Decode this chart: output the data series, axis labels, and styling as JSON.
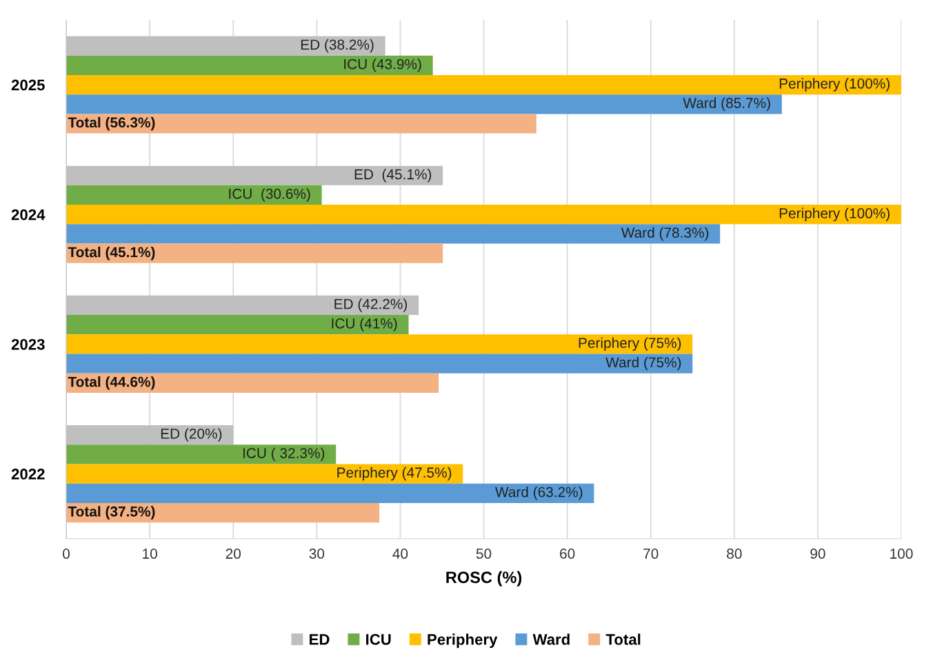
{
  "chart_data": {
    "type": "bar",
    "orientation": "horizontal",
    "xlabel": "ROSC (%)",
    "categories": [
      "2025",
      "2024",
      "2023",
      "2022"
    ],
    "series": [
      {
        "name": "ED",
        "color": "#bfbfbf",
        "values": [
          38.2,
          45.1,
          42.2,
          20
        ],
        "value_labels": [
          "ED (38.2%)",
          "ED  (45.1%)",
          "ED (42.2%)",
          "ED (20%)"
        ]
      },
      {
        "name": "ICU",
        "color": "#70ad47",
        "values": [
          43.9,
          30.6,
          41,
          32.3
        ],
        "value_labels": [
          "ICU (43.9%)",
          "ICU  (30.6%)",
          "ICU (41%)",
          "ICU ( 32.3%)"
        ]
      },
      {
        "name": "Periphery",
        "color": "#ffc000",
        "values": [
          100,
          100,
          75,
          47.5
        ],
        "value_labels": [
          "Periphery (100%)",
          "Periphery (100%)",
          "Periphery (75%)",
          "Periphery (47.5%)"
        ]
      },
      {
        "name": "Ward",
        "color": "#5b9bd5",
        "values": [
          85.7,
          78.3,
          75,
          63.2
        ],
        "value_labels": [
          "Ward (85.7%)",
          "Ward (78.3%)",
          "Ward (75%)",
          "Ward (63.2%)"
        ]
      },
      {
        "name": "Total",
        "color": "#f4b183",
        "values": [
          56.3,
          45.1,
          44.6,
          37.5
        ],
        "value_labels": [
          "Total (56.3%)",
          "Total (45.1%)",
          "Total (44.6%)",
          "Total (37.5%)"
        ]
      }
    ],
    "xlim": [
      0,
      100
    ],
    "xticks": [
      0,
      10,
      20,
      30,
      40,
      50,
      60,
      70,
      80,
      90,
      100
    ],
    "grid": "x",
    "legend": "bottom"
  }
}
